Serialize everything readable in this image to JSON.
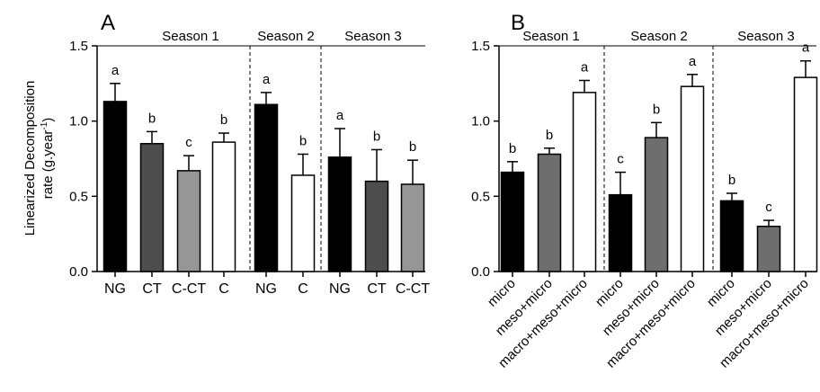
{
  "chart_data": [
    {
      "type": "bar",
      "panel_label": "A",
      "ylabel_line1": "Linearized Decomposition",
      "ylabel_line2": "rate (g.year",
      "ylabel_sup": "-1",
      "ylabel_close": ")",
      "ylim": [
        0,
        1.5
      ],
      "yticks": [
        "0.0",
        "0.5",
        "1.0",
        "1.5"
      ],
      "ytick_values": [
        0,
        0.5,
        1.0,
        1.5
      ],
      "groups": [
        {
          "season": "Season 1",
          "bars": [
            {
              "category": "NG",
              "value": 1.13,
              "error": 0.12,
              "letter": "a",
              "color": "#000000"
            },
            {
              "category": "CT",
              "value": 0.85,
              "error": 0.08,
              "letter": "b",
              "color": "#4d4d4d"
            },
            {
              "category": "C-CT",
              "value": 0.67,
              "error": 0.1,
              "letter": "c",
              "color": "#969696"
            },
            {
              "category": "C",
              "value": 0.86,
              "error": 0.06,
              "letter": "b",
              "color": "#ffffff"
            }
          ]
        },
        {
          "season": "Season 2",
          "bars": [
            {
              "category": "NG",
              "value": 1.11,
              "error": 0.08,
              "letter": "a",
              "color": "#000000"
            },
            {
              "category": "C",
              "value": 0.64,
              "error": 0.14,
              "letter": "b",
              "color": "#ffffff"
            }
          ]
        },
        {
          "season": "Season 3",
          "bars": [
            {
              "category": "NG",
              "value": 0.76,
              "error": 0.19,
              "letter": "a",
              "color": "#000000"
            },
            {
              "category": "CT",
              "value": 0.6,
              "error": 0.21,
              "letter": "b",
              "color": "#4d4d4d"
            },
            {
              "category": "C-CT",
              "value": 0.58,
              "error": 0.16,
              "letter": "b",
              "color": "#969696"
            }
          ]
        }
      ]
    },
    {
      "type": "bar",
      "panel_label": "B",
      "ylim": [
        0,
        1.5
      ],
      "yticks": [
        "0.0",
        "0.5",
        "1.0",
        "1.5"
      ],
      "ytick_values": [
        0,
        0.5,
        1.0,
        1.5
      ],
      "groups": [
        {
          "season": "Season 1",
          "bars": [
            {
              "category": "micro",
              "value": 0.66,
              "error": 0.07,
              "letter": "b",
              "color": "#000000"
            },
            {
              "category": "meso+micro",
              "value": 0.78,
              "error": 0.04,
              "letter": "b",
              "color": "#6e6e6e"
            },
            {
              "category": "macro+meso+micro",
              "value": 1.19,
              "error": 0.08,
              "letter": "a",
              "color": "#ffffff"
            }
          ]
        },
        {
          "season": "Season 2",
          "bars": [
            {
              "category": "micro",
              "value": 0.51,
              "error": 0.15,
              "letter": "c",
              "color": "#000000"
            },
            {
              "category": "meso+micro",
              "value": 0.89,
              "error": 0.1,
              "letter": "b",
              "color": "#6e6e6e"
            },
            {
              "category": "macro+meso+micro",
              "value": 1.23,
              "error": 0.08,
              "letter": "a",
              "color": "#ffffff"
            }
          ]
        },
        {
          "season": "Season 3",
          "bars": [
            {
              "category": "micro",
              "value": 0.47,
              "error": 0.05,
              "letter": "b",
              "color": "#000000"
            },
            {
              "category": "meso+micro",
              "value": 0.3,
              "error": 0.04,
              "letter": "c",
              "color": "#6e6e6e"
            },
            {
              "category": "macro+meso+micro",
              "value": 1.29,
              "error": 0.11,
              "letter": "a",
              "color": "#ffffff"
            }
          ]
        }
      ]
    }
  ]
}
